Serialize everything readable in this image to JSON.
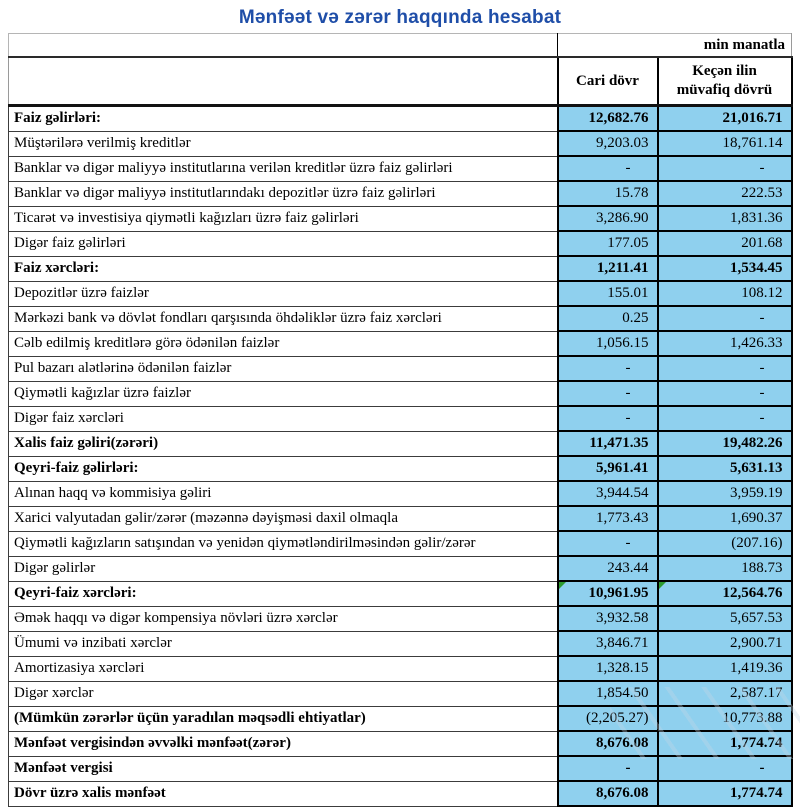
{
  "title": "Mənfəət və zərər haqqında hesabat",
  "table": {
    "unit_label": "min manatla",
    "columns": [
      "Cari dövr",
      "Keçən ilin müvafiq dövrü"
    ],
    "accent_fill_color": "#8FD0EE",
    "marker_color": "#2E9A2E",
    "title_color": "#1F4EA8",
    "rows": [
      {
        "label": "Faiz gəlirləri:",
        "current": "12,682.76",
        "previous": "21,016.71",
        "label_bold": true,
        "values_bold": true,
        "marker": false
      },
      {
        "label": "Müştərilərə verilmiş kreditlər",
        "current": "9,203.03",
        "previous": "18,761.14",
        "label_bold": false,
        "values_bold": false,
        "marker": false
      },
      {
        "label": "Banklar və digər maliyyə institutlarına verilən kreditlər üzrə faiz gəlirləri",
        "current": "-",
        "previous": "-",
        "label_bold": false,
        "values_bold": false,
        "marker": false
      },
      {
        "label": "Banklar və digər maliyyə institutlarındakı depozitlər üzrə faiz gəlirləri",
        "current": "15.78",
        "previous": "222.53",
        "label_bold": false,
        "values_bold": false,
        "marker": false
      },
      {
        "label": "Ticarət və investisiya qiymətli kağızları üzrə faiz gəlirləri",
        "current": "3,286.90",
        "previous": "1,831.36",
        "label_bold": false,
        "values_bold": false,
        "marker": false
      },
      {
        "label": "Digər faiz gəlirləri",
        "current": "177.05",
        "previous": "201.68",
        "label_bold": false,
        "values_bold": false,
        "marker": false
      },
      {
        "label": "Faiz xərcləri:",
        "current": "1,211.41",
        "previous": "1,534.45",
        "label_bold": true,
        "values_bold": true,
        "marker": false
      },
      {
        "label": "Depozitlər üzrə faizlər",
        "current": "155.01",
        "previous": "108.12",
        "label_bold": false,
        "values_bold": false,
        "marker": false
      },
      {
        "label": "Mərkəzi bank və dövlət fondları qarşısında öhdəliklər üzrə faiz xərcləri",
        "current": "0.25",
        "previous": "-",
        "label_bold": false,
        "values_bold": false,
        "marker": false
      },
      {
        "label": "Cəlb edilmiş kreditlərə görə ödənilən faizlər",
        "current": "1,056.15",
        "previous": "1,426.33",
        "label_bold": false,
        "values_bold": false,
        "marker": false
      },
      {
        "label": "Pul bazarı alətlərinə ödənilən faizlər",
        "current": "-",
        "previous": "-",
        "label_bold": false,
        "values_bold": false,
        "marker": false
      },
      {
        "label": "Qiymətli kağızlar üzrə faizlər",
        "current": "-",
        "previous": "-",
        "label_bold": false,
        "values_bold": false,
        "marker": false
      },
      {
        "label": "Digər faiz xərcləri",
        "current": "-",
        "previous": "-",
        "label_bold": false,
        "values_bold": false,
        "marker": false
      },
      {
        "label": "Xalis faiz gəliri(zərəri)",
        "current": "11,471.35",
        "previous": "19,482.26",
        "label_bold": true,
        "values_bold": true,
        "marker": false
      },
      {
        "label": "Qeyri-faiz gəlirləri:",
        "current": "5,961.41",
        "previous": "5,631.13",
        "label_bold": true,
        "values_bold": true,
        "marker": false
      },
      {
        "label": "Alınan haqq və kommisiya gəliri",
        "current": "3,944.54",
        "previous": "3,959.19",
        "label_bold": false,
        "values_bold": false,
        "marker": false
      },
      {
        "label": "Xarici valyutadan gəlir/zərər (məzənnə dəyişməsi daxil olmaqla",
        "current": "1,773.43",
        "previous": "1,690.37",
        "label_bold": false,
        "values_bold": false,
        "marker": false
      },
      {
        "label": "Qiymətli kağızların satışından və yenidən qiymətləndirilməsindən gəlir/zərər",
        "current": "-",
        "previous": "(207.16)",
        "label_bold": false,
        "values_bold": false,
        "marker": false
      },
      {
        "label": "Digər gəlirlər",
        "current": "243.44",
        "previous": "188.73",
        "label_bold": false,
        "values_bold": false,
        "marker": false
      },
      {
        "label": "Qeyri-faiz xərcləri:",
        "current": "10,961.95",
        "previous": "12,564.76",
        "label_bold": true,
        "values_bold": true,
        "marker": true
      },
      {
        "label": "Əmək haqqı və digər kompensiya növləri üzrə xərclər",
        "current": "3,932.58",
        "previous": "5,657.53",
        "label_bold": false,
        "values_bold": false,
        "marker": false
      },
      {
        "label": "Ümumi və inzibati xərclər",
        "current": "3,846.71",
        "previous": "2,900.71",
        "label_bold": false,
        "values_bold": false,
        "marker": false
      },
      {
        "label": "Amortizasiya xərcləri",
        "current": "1,328.15",
        "previous": "1,419.36",
        "label_bold": false,
        "values_bold": false,
        "marker": false
      },
      {
        "label": "Digər xərclər",
        "current": "1,854.50",
        "previous": "2,587.17",
        "label_bold": false,
        "values_bold": false,
        "marker": false
      },
      {
        "label": "(Mümkün zərərlər üçün yaradılan məqsədli ehtiyatlar)",
        "current": "(2,205.27)",
        "previous": "10,773.88",
        "label_bold": true,
        "values_bold": false,
        "marker": false
      },
      {
        "label": "Mənfəət vergisindən əvvəlki mənfəət(zərər)",
        "current": "8,676.08",
        "previous": "1,774.74",
        "label_bold": true,
        "values_bold": true,
        "marker": false
      },
      {
        "label": "Mənfəət vergisi",
        "current": "-",
        "previous": "-",
        "label_bold": true,
        "values_bold": true,
        "marker": false
      },
      {
        "label": "Dövr üzrə xalis mənfəət",
        "current": "8,676.08",
        "previous": "1,774.74",
        "label_bold": true,
        "values_bold": true,
        "marker": false
      }
    ]
  }
}
